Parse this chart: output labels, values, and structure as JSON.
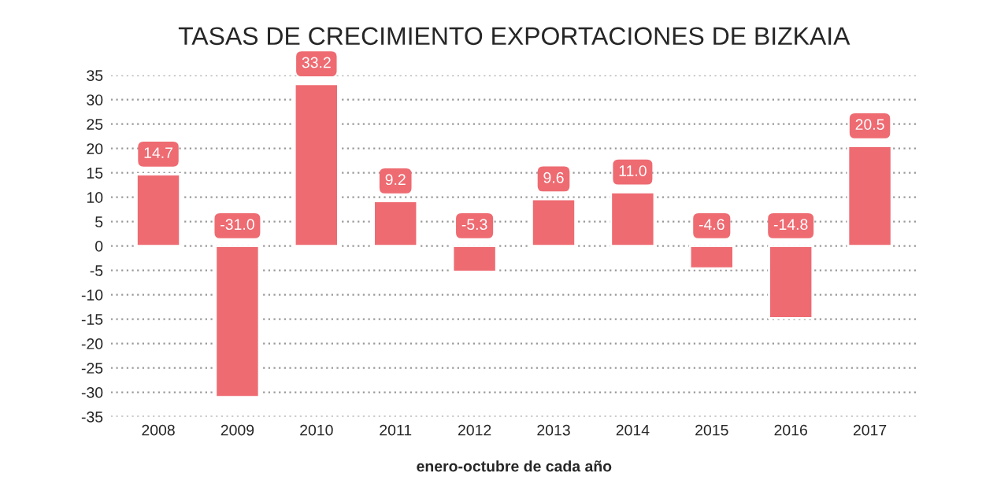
{
  "chart_data": {
    "type": "bar",
    "title": "TASAS DE CRECIMIENTO EXPORTACIONES DE BIZKAIA",
    "xlabel": "enero-octubre de cada año",
    "categories": [
      "2008",
      "2009",
      "2010",
      "2011",
      "2012",
      "2013",
      "2014",
      "2015",
      "2016",
      "2017"
    ],
    "values": [
      14.7,
      -31.0,
      33.2,
      9.2,
      -5.3,
      9.6,
      11.0,
      -4.6,
      -14.8,
      20.5
    ],
    "value_labels": [
      "14.7",
      "-31.0",
      "33.2",
      "9.2",
      "-5.3",
      "9.6",
      "11.0",
      "-4.6",
      "-14.8",
      "20.5"
    ],
    "color": "#ee6b72",
    "ylim": [
      -35,
      35
    ],
    "yticks": [
      -35,
      -30,
      -25,
      -20,
      -15,
      -10,
      -5,
      0,
      5,
      10,
      15,
      20,
      25,
      30,
      35
    ],
    "grid": "y"
  }
}
